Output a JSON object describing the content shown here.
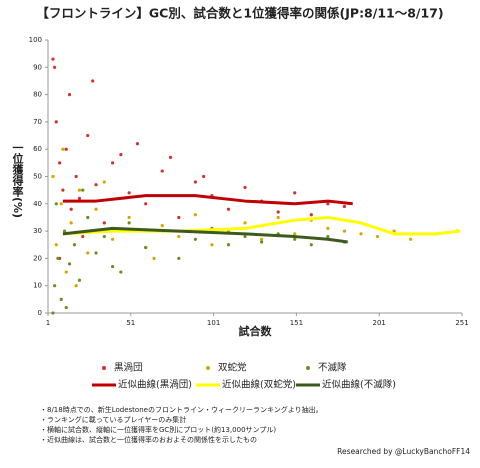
{
  "chart_data": {
    "type": "scatter",
    "title": "【フロントライン】GC別、試合数と1位獲得率の関係(JP:8/11〜8/17)",
    "x_label": "試合数",
    "y_label": "一位獲得率(%)",
    "xlim": [
      1,
      251
    ],
    "xticks": [
      1,
      51,
      101,
      151,
      201,
      251
    ],
    "ylim": [
      0,
      100
    ],
    "yticks": [
      0,
      10,
      20,
      30,
      40,
      50,
      60,
      70,
      80,
      90,
      100
    ],
    "series": [
      {
        "name": "黒渦団",
        "color": "#cc3333",
        "x": [
          5,
          6,
          8,
          10,
          12,
          15,
          18,
          20,
          25,
          30,
          35,
          40,
          50,
          60,
          70,
          80,
          90,
          100,
          110,
          120,
          130,
          140,
          150,
          160,
          170,
          180,
          8,
          14,
          22,
          45,
          4,
          28,
          55,
          75,
          95
        ],
        "values": [
          90,
          70,
          55,
          45,
          60,
          38,
          50,
          42,
          65,
          47,
          33,
          55,
          44,
          40,
          52,
          35,
          48,
          43,
          38,
          46,
          41,
          37,
          44,
          36,
          40,
          39,
          20,
          80,
          28,
          58,
          93,
          85,
          62,
          57,
          50
        ]
      },
      {
        "name": "双蛇党",
        "color": "#d9a400",
        "x": [
          4,
          6,
          9,
          12,
          15,
          20,
          25,
          30,
          40,
          50,
          60,
          70,
          80,
          90,
          100,
          110,
          120,
          130,
          140,
          150,
          160,
          170,
          180,
          190,
          200,
          210,
          220,
          235,
          248,
          10,
          18,
          35,
          65
        ],
        "values": [
          50,
          25,
          40,
          15,
          33,
          45,
          22,
          38,
          27,
          35,
          24,
          32,
          28,
          36,
          25,
          30,
          33,
          27,
          35,
          29,
          34,
          31,
          30,
          29,
          28,
          30,
          27,
          29,
          30,
          60,
          10,
          48,
          20
        ]
      },
      {
        "name": "不滅隊",
        "color": "#6b8e23",
        "x": [
          4,
          5,
          7,
          9,
          11,
          14,
          17,
          20,
          25,
          30,
          35,
          40,
          50,
          60,
          70,
          80,
          90,
          100,
          110,
          120,
          130,
          140,
          150,
          160,
          170,
          180,
          6,
          12,
          22,
          45
        ],
        "values": [
          0,
          10,
          20,
          5,
          30,
          18,
          25,
          12,
          35,
          22,
          28,
          17,
          33,
          24,
          30,
          20,
          27,
          31,
          25,
          28,
          26,
          29,
          27,
          25,
          28,
          26,
          40,
          2,
          45,
          15
        ]
      }
    ],
    "lines": [
      {
        "name": "近似曲線(黒渦団)",
        "color": "#c00000",
        "x": [
          10,
          30,
          60,
          90,
          120,
          150,
          170,
          185
        ],
        "values": [
          41,
          41,
          43,
          43,
          41,
          40,
          41,
          40
        ]
      },
      {
        "name": "近似曲線(双蛇党)",
        "color": "#ffff00",
        "x": [
          10,
          40,
          80,
          120,
          150,
          170,
          190,
          210,
          235,
          250
        ],
        "values": [
          29,
          30,
          30,
          31,
          34,
          35,
          33,
          29,
          29,
          30
        ]
      },
      {
        "name": "近似曲線(不滅隊)",
        "color": "#3d5a1e",
        "x": [
          10,
          40,
          80,
          120,
          150,
          170,
          182
        ],
        "values": [
          29,
          31,
          30,
          29,
          28,
          27,
          26
        ]
      }
    ],
    "notes": [
      "・8/18時点での、新生Lodestoneのフロントライン・ウィークリーランキングより抽出。",
      "・ランキングに載っているプレイヤーのみ集計",
      "・横軸に試合数、縦軸に一位獲得率をGC別にプロット(約13,000サンプル)",
      "・近似曲線は、試合数と一位獲得率のおおよその関係性を示したもの"
    ],
    "credit": "Researched by @LuckyBanchoFF14"
  }
}
